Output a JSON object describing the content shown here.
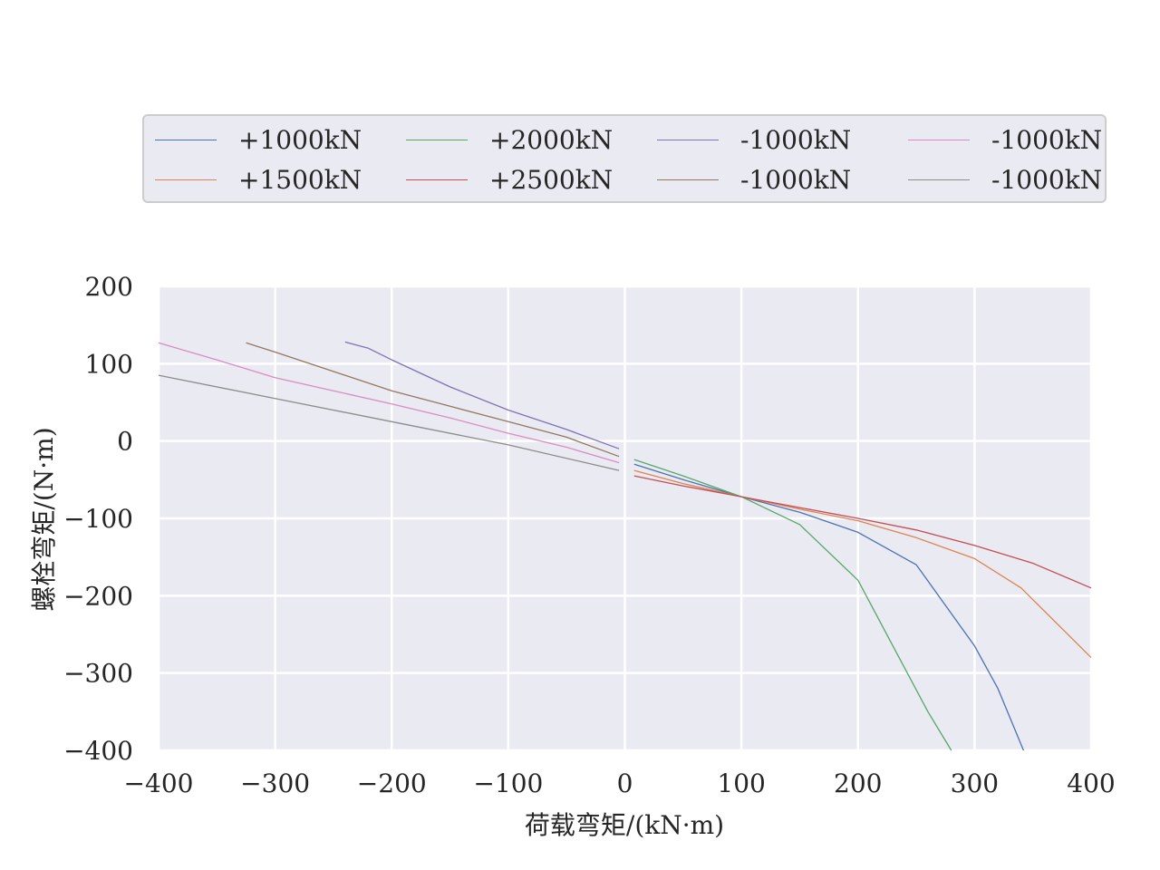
{
  "chart_data": {
    "type": "line",
    "title": "",
    "xlabel": "荷载弯矩/(kN·m)",
    "ylabel": "螺栓弯矩/(N·m)",
    "xlim": [
      -400,
      400
    ],
    "ylim": [
      -400,
      200
    ],
    "xticks": [
      "−400",
      "−300",
      "−200",
      "−100",
      "0",
      "100",
      "200",
      "300",
      "400"
    ],
    "yticks": [
      "200",
      "100",
      "0",
      "−100",
      "−200",
      "−300",
      "−400"
    ],
    "grid": true,
    "legend_placement": "top, 4 columns",
    "colors": {
      "background": "#eaeaf2",
      "grid": "#ffffff",
      "text": "#262626"
    },
    "series": [
      {
        "name": "+1000kN",
        "color": "#4c72b0",
        "x": [
          8,
          50,
          100,
          150,
          200,
          250,
          300,
          320,
          342
        ],
        "y": [
          -30,
          -50,
          -72,
          -92,
          -118,
          -160,
          -265,
          -320,
          -400
        ]
      },
      {
        "name": "+1500kN",
        "color": "#dd8452",
        "x": [
          8,
          50,
          100,
          150,
          200,
          250,
          300,
          340,
          400
        ],
        "y": [
          -38,
          -55,
          -72,
          -88,
          -103,
          -125,
          -152,
          -190,
          -280
        ]
      },
      {
        "name": "+2000kN",
        "color": "#55a868",
        "x": [
          8,
          50,
          100,
          150,
          200,
          230,
          260,
          280
        ],
        "y": [
          -24,
          -45,
          -72,
          -108,
          -180,
          -265,
          -350,
          -400
        ]
      },
      {
        "name": "+2500kN",
        "color": "#c44e52",
        "x": [
          8,
          50,
          100,
          150,
          200,
          250,
          300,
          350,
          400
        ],
        "y": [
          -45,
          -58,
          -72,
          -86,
          -100,
          -115,
          -135,
          -158,
          -190
        ]
      },
      {
        "name": "-1000kN",
        "color": "#8172b3",
        "x": [
          -240,
          -220,
          -200,
          -150,
          -100,
          -50,
          -5
        ],
        "y": [
          128,
          120,
          105,
          70,
          40,
          15,
          -10
        ]
      },
      {
        "name": "-1000kN",
        "color": "#937860",
        "x": [
          -325,
          -300,
          -250,
          -200,
          -150,
          -100,
          -50,
          -5
        ],
        "y": [
          127,
          115,
          90,
          65,
          45,
          25,
          5,
          -20
        ]
      },
      {
        "name": "-1000kN",
        "color": "#da8bc3",
        "x": [
          -400,
          -350,
          -300,
          -250,
          -200,
          -150,
          -100,
          -50,
          -5
        ],
        "y": [
          127,
          105,
          82,
          65,
          48,
          30,
          10,
          -8,
          -28
        ]
      },
      {
        "name": "-1000kN",
        "color": "#8c8c8c",
        "x": [
          -400,
          -300,
          -200,
          -100,
          -5
        ],
        "y": [
          85,
          55,
          25,
          -5,
          -38
        ]
      }
    ]
  }
}
